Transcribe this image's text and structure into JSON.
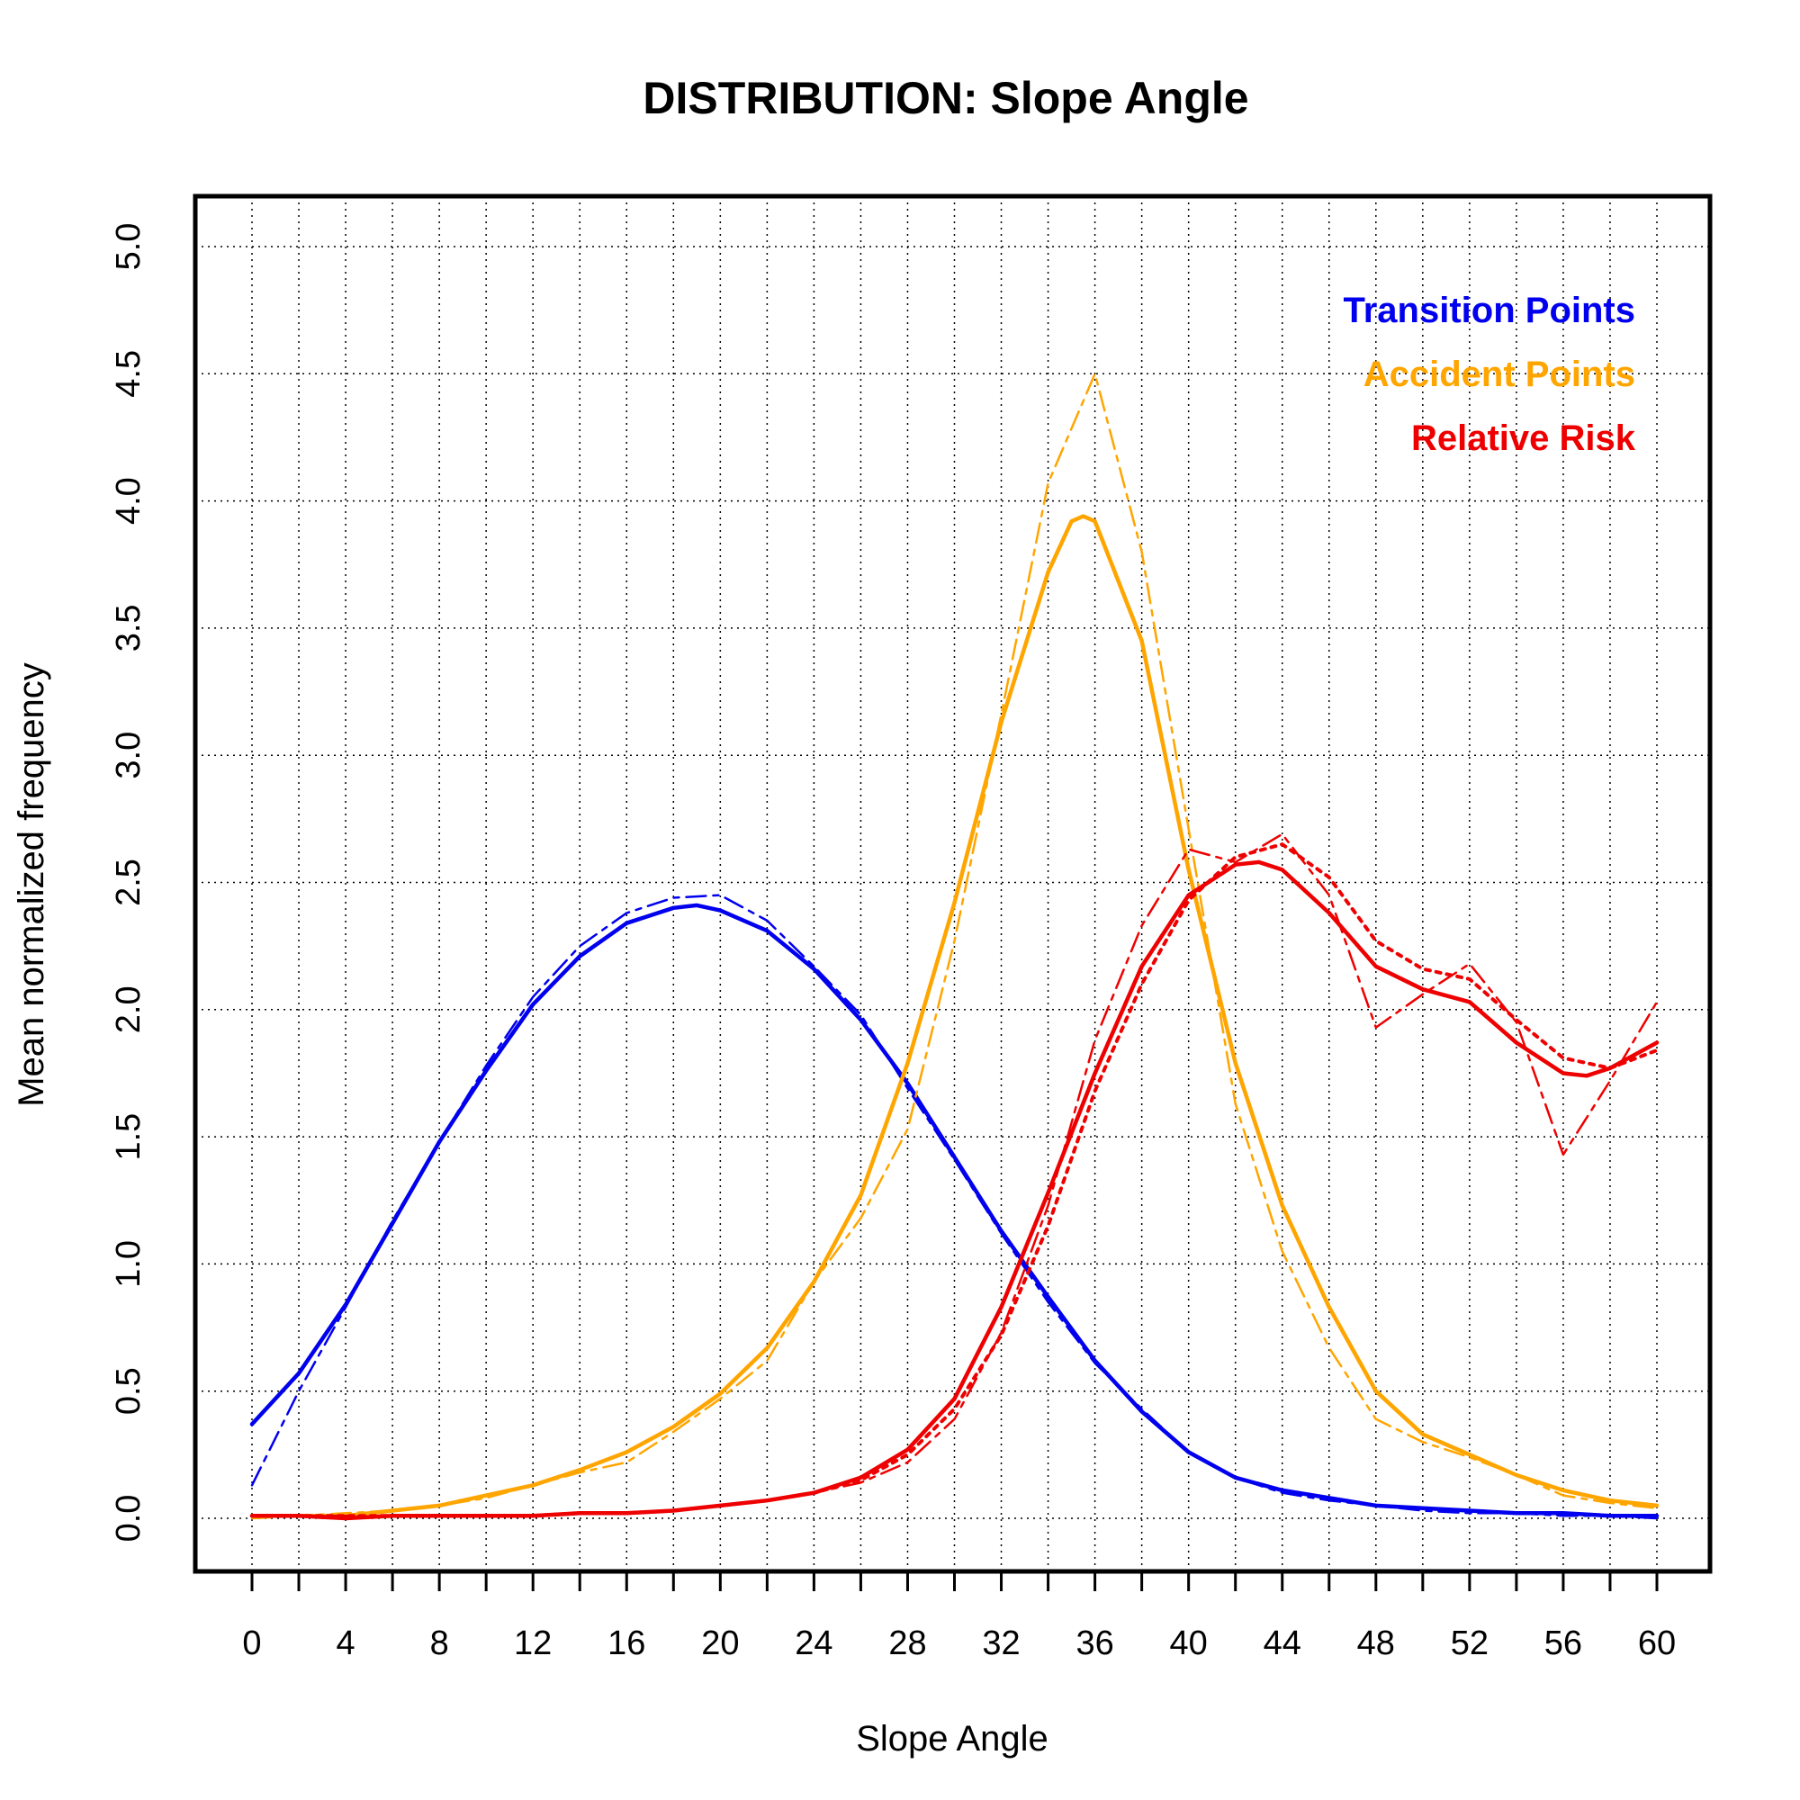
{
  "chart_data": {
    "type": "line",
    "title": "DISTRIBUTION: Slope Angle",
    "xlabel": "Slope Angle",
    "ylabel": "Mean normalized frequency",
    "xlim": [
      0,
      60
    ],
    "ylim": [
      0,
      5
    ],
    "x_ticks": [
      0,
      4,
      8,
      12,
      16,
      20,
      24,
      28,
      32,
      36,
      40,
      44,
      48,
      52,
      56,
      60
    ],
    "x_ticks_minor": [
      2,
      6,
      10,
      14,
      18,
      22,
      26,
      30,
      34,
      38,
      42,
      46,
      50,
      54,
      58
    ],
    "x_tick_labels": [
      "0",
      "4",
      "8",
      "12",
      "16",
      "20",
      "24",
      "28",
      "32",
      "36",
      "40",
      "44",
      "48",
      "52",
      "56",
      "60"
    ],
    "y_ticks": [
      0,
      0.5,
      1,
      1.5,
      2,
      2.5,
      3,
      3.5,
      4,
      4.5,
      5
    ],
    "y_tick_labels": [
      "0.0",
      "0.5",
      "1.0",
      "1.5",
      "2.0",
      "2.5",
      "3.0",
      "3.5",
      "4.0",
      "4.5",
      "5.0"
    ],
    "grid": true,
    "legend_position": "top-right",
    "legend": [
      {
        "label": "Transition Points",
        "color": "#0000ee"
      },
      {
        "label": "Accident Points",
        "color": "#ffa500"
      },
      {
        "label": "Relative Risk",
        "color": "#ee0000"
      }
    ],
    "series": [
      {
        "name": "Transition Points (raw)",
        "group": "Transition Points",
        "style": "dashed",
        "color": "#0000ee",
        "x": [
          0,
          2,
          4,
          6,
          8,
          10,
          12,
          14,
          16,
          18,
          20,
          22,
          24,
          26,
          28,
          30,
          32,
          34,
          36,
          38,
          40,
          42,
          44,
          46,
          48,
          50,
          52,
          54,
          56,
          58,
          60
        ],
        "y": [
          0.13,
          0.5,
          0.83,
          1.17,
          1.48,
          1.78,
          2.05,
          2.25,
          2.38,
          2.44,
          2.45,
          2.35,
          2.17,
          1.98,
          1.69,
          1.41,
          1.12,
          0.85,
          0.61,
          0.43,
          0.26,
          0.16,
          0.1,
          0.07,
          0.05,
          0.03,
          0.02,
          0.02,
          0.01,
          0.01,
          0.0
        ]
      },
      {
        "name": "Transition Points (smoothed)",
        "group": "Transition Points",
        "style": "solid",
        "color": "#0000ee",
        "x": [
          0,
          2,
          4,
          6,
          8,
          10,
          12,
          14,
          16,
          18,
          19,
          20,
          22,
          24,
          26,
          28,
          30,
          32,
          34,
          36,
          38,
          40,
          42,
          44,
          46,
          48,
          50,
          52,
          54,
          56,
          58,
          60
        ],
        "y": [
          0.37,
          0.57,
          0.84,
          1.16,
          1.48,
          1.76,
          2.02,
          2.21,
          2.34,
          2.4,
          2.41,
          2.39,
          2.31,
          2.16,
          1.96,
          1.71,
          1.42,
          1.13,
          0.87,
          0.62,
          0.42,
          0.26,
          0.16,
          0.11,
          0.08,
          0.05,
          0.04,
          0.03,
          0.02,
          0.02,
          0.01,
          0.01
        ]
      },
      {
        "name": "Accident Points (raw)",
        "group": "Accident Points",
        "style": "dashed",
        "color": "#ffa500",
        "x": [
          0,
          2,
          4,
          6,
          8,
          10,
          12,
          14,
          16,
          18,
          20,
          22,
          24,
          26,
          28,
          30,
          32,
          34,
          36,
          38,
          40,
          42,
          44,
          46,
          48,
          50,
          52,
          54,
          56,
          58,
          60
        ],
        "y": [
          0.0,
          0.01,
          0.02,
          0.03,
          0.05,
          0.08,
          0.13,
          0.18,
          0.22,
          0.34,
          0.47,
          0.62,
          0.93,
          1.18,
          1.53,
          2.27,
          3.16,
          4.07,
          4.5,
          3.8,
          2.71,
          1.63,
          1.05,
          0.67,
          0.39,
          0.3,
          0.24,
          0.17,
          0.09,
          0.06,
          0.04
        ]
      },
      {
        "name": "Accident Points (smoothed)",
        "group": "Accident Points",
        "style": "solid",
        "color": "#ffa500",
        "x": [
          0,
          2,
          4,
          6,
          8,
          10,
          12,
          14,
          16,
          18,
          20,
          22,
          24,
          26,
          28,
          30,
          32,
          34,
          35,
          35.5,
          36,
          38,
          40,
          42,
          44,
          46,
          48,
          50,
          52,
          54,
          56,
          58,
          60
        ],
        "y": [
          0.01,
          0.01,
          0.01,
          0.03,
          0.05,
          0.09,
          0.13,
          0.19,
          0.26,
          0.36,
          0.49,
          0.67,
          0.93,
          1.27,
          1.79,
          2.42,
          3.13,
          3.72,
          3.92,
          3.94,
          3.92,
          3.45,
          2.55,
          1.79,
          1.23,
          0.83,
          0.5,
          0.33,
          0.25,
          0.17,
          0.11,
          0.07,
          0.05
        ]
      },
      {
        "name": "Relative Risk (raw)",
        "group": "Relative Risk",
        "style": "dashed",
        "color": "#ee0000",
        "x": [
          0,
          2,
          4,
          6,
          8,
          10,
          12,
          14,
          16,
          18,
          20,
          22,
          24,
          26,
          28,
          30,
          32,
          34,
          36,
          38,
          40,
          42,
          44,
          46,
          48,
          50,
          52,
          54,
          56,
          58,
          60
        ],
        "y": [
          0.01,
          0.01,
          0.01,
          0.01,
          0.01,
          0.01,
          0.01,
          0.02,
          0.02,
          0.03,
          0.05,
          0.07,
          0.1,
          0.14,
          0.22,
          0.39,
          0.73,
          1.23,
          1.88,
          2.33,
          2.63,
          2.58,
          2.69,
          2.45,
          1.93,
          2.06,
          2.18,
          1.95,
          1.43,
          1.72,
          2.03
        ]
      },
      {
        "name": "Relative Risk (dotted)",
        "group": "Relative Risk",
        "style": "dotted",
        "color": "#ee0000",
        "x": [
          0,
          2,
          4,
          6,
          8,
          10,
          12,
          14,
          16,
          18,
          20,
          22,
          24,
          26,
          28,
          30,
          32,
          34,
          36,
          38,
          40,
          42,
          44,
          46,
          48,
          50,
          52,
          54,
          56,
          58,
          60
        ],
        "y": [
          0.01,
          0.01,
          0.01,
          0.01,
          0.01,
          0.01,
          0.01,
          0.02,
          0.02,
          0.03,
          0.05,
          0.07,
          0.1,
          0.15,
          0.25,
          0.43,
          0.72,
          1.15,
          1.68,
          2.1,
          2.43,
          2.6,
          2.65,
          2.52,
          2.27,
          2.16,
          2.12,
          1.96,
          1.81,
          1.77,
          1.84
        ]
      },
      {
        "name": "Relative Risk (smoothed)",
        "group": "Relative Risk",
        "style": "solid",
        "color": "#ee0000",
        "x": [
          0,
          2,
          4,
          6,
          8,
          10,
          12,
          14,
          16,
          18,
          20,
          22,
          24,
          26,
          28,
          30,
          32,
          34,
          36,
          38,
          40,
          42,
          43,
          44,
          46,
          48,
          50,
          52,
          54,
          56,
          57,
          58,
          60
        ],
        "y": [
          0.01,
          0.01,
          0.0,
          0.01,
          0.01,
          0.01,
          0.01,
          0.02,
          0.02,
          0.03,
          0.05,
          0.07,
          0.1,
          0.16,
          0.27,
          0.47,
          0.83,
          1.28,
          1.75,
          2.17,
          2.45,
          2.57,
          2.58,
          2.55,
          2.38,
          2.17,
          2.08,
          2.03,
          1.87,
          1.75,
          1.74,
          1.77,
          1.87
        ]
      }
    ]
  }
}
